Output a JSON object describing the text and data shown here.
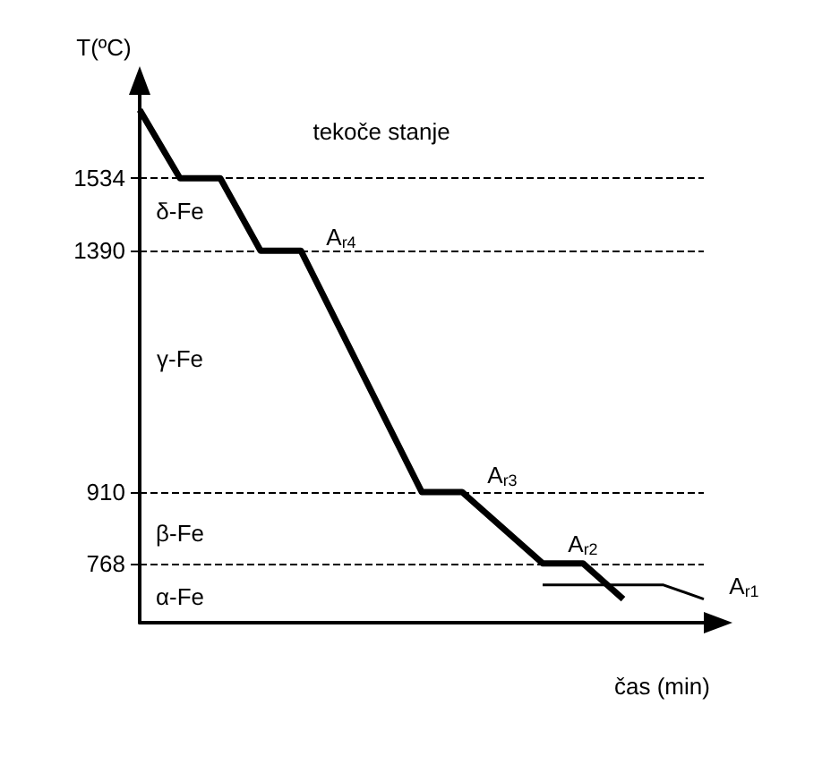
{
  "chart_data": {
    "type": "line",
    "ylabel": "T(ºC)",
    "xlabel": "čas (min)",
    "categories": [
      null,
      null,
      null,
      null,
      null,
      null,
      null,
      null,
      null,
      null,
      null,
      null,
      null,
      null,
      null
    ],
    "series": [
      {
        "color": "#000000",
        "values": [
          1670,
          1534,
          1534,
          1390,
          1390,
          null,
          null,
          910,
          910,
          null,
          768,
          768,
          697,
          null,
          null
        ]
      },
      {
        "color": "#000000",
        "values": [
          null,
          null,
          null,
          null,
          null,
          null,
          null,
          null,
          null,
          null,
          725,
          null,
          null,
          725,
          697
        ]
      }
    ],
    "ylim": [
      650,
      1700
    ],
    "yticks": [
      768,
      910,
      1390,
      1534
    ],
    "tick_labels": "y",
    "grid": false,
    "marker": "none",
    "ref_lines": [
      {
        "axis": "y",
        "value": 1534,
        "line_style": "dashed",
        "color": "#000000"
      },
      {
        "axis": "y",
        "value": 1390,
        "line_style": "dashed",
        "color": "#000000"
      },
      {
        "axis": "y",
        "value": 910,
        "line_style": "dashed",
        "color": "#000000"
      },
      {
        "axis": "y",
        "value": 768,
        "line_style": "dashed",
        "color": "#000000"
      }
    ],
    "annotations": [
      "tekoče stanje",
      "δ-Fe",
      "γ-Fe",
      "β-Fe",
      "α-Fe",
      "A$_{r4}$",
      "A$_{r3}$",
      "A$_{r2}$",
      "A$_{r1}$"
    ]
  }
}
